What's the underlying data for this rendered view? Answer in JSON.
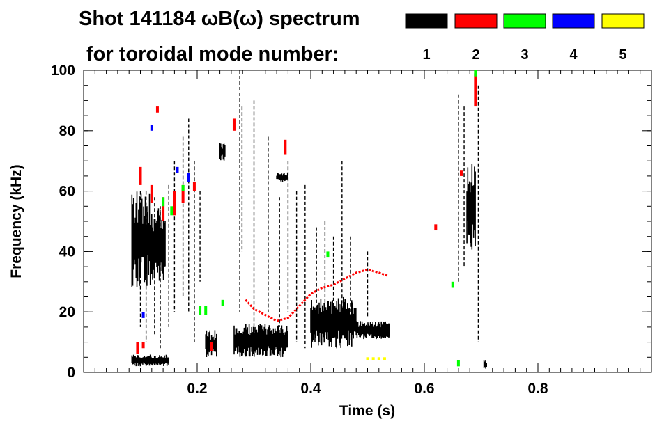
{
  "chart_data": {
    "type": "scatter",
    "title_line1": "Shot 141184 ωB(ω) spectrum",
    "title_line2": "for toroidal mode number:",
    "xlabel": "Time (s)",
    "ylabel": "Frequency (kHz)",
    "xlim": [
      0.0,
      1.0
    ],
    "ylim": [
      0,
      100
    ],
    "xticks": [
      0.2,
      0.4,
      0.6,
      0.8
    ],
    "xtick_labels": [
      "0.2",
      "0.4",
      "0.6",
      "0.8"
    ],
    "x_minor_step": 0.02,
    "yticks": [
      0,
      20,
      40,
      60,
      80,
      100
    ],
    "ytick_labels": [
      "0",
      "20",
      "40",
      "60",
      "80",
      "100"
    ],
    "y_minor_step": 5,
    "grid": false,
    "legend": {
      "placement": "top-right",
      "entries": [
        {
          "label": "1",
          "color": "#000000"
        },
        {
          "label": "2",
          "color": "#ff0000"
        },
        {
          "label": "3",
          "color": "#00ff00"
        },
        {
          "label": "4",
          "color": "#0000ff"
        },
        {
          "label": "5",
          "color": "#ffff00"
        }
      ]
    },
    "series": [
      {
        "name": "n=1",
        "color": "#000000",
        "regions": [
          {
            "t": [
              0.085,
              0.12
            ],
            "f": [
              28,
              60
            ]
          },
          {
            "t": [
              0.12,
              0.145
            ],
            "f": [
              30,
              55
            ]
          },
          {
            "t": [
              0.085,
              0.15
            ],
            "f": [
              2,
              6
            ]
          },
          {
            "t": [
              0.215,
              0.235
            ],
            "f": [
              5,
              14
            ]
          },
          {
            "t": [
              0.24,
              0.25
            ],
            "f": [
              70,
              76
            ]
          },
          {
            "t": [
              0.265,
              0.36
            ],
            "f": [
              5,
              16
            ]
          },
          {
            "t": [
              0.34,
              0.36
            ],
            "f": [
              63,
              66
            ]
          },
          {
            "t": [
              0.4,
              0.48
            ],
            "f": [
              8,
              25
            ]
          },
          {
            "t": [
              0.48,
              0.54
            ],
            "f": [
              11,
              17
            ]
          },
          {
            "t": [
              0.675,
              0.69
            ],
            "f": [
              40,
              70
            ]
          },
          {
            "t": [
              0.705,
              0.71
            ],
            "f": [
              1,
              4
            ]
          }
        ],
        "streaks": [
          {
            "t": 0.1,
            "f": [
              15,
              60
            ]
          },
          {
            "t": 0.11,
            "f": [
              10,
              60
            ]
          },
          {
            "t": 0.125,
            "f": [
              12,
              58
            ]
          },
          {
            "t": 0.135,
            "f": [
              8,
              55
            ]
          },
          {
            "t": 0.15,
            "f": [
              15,
              62
            ]
          },
          {
            "t": 0.16,
            "f": [
              20,
              70
            ]
          },
          {
            "t": 0.175,
            "f": [
              25,
              78
            ]
          },
          {
            "t": 0.185,
            "f": [
              20,
              84
            ]
          },
          {
            "t": 0.195,
            "f": [
              10,
              70
            ]
          },
          {
            "t": 0.205,
            "f": [
              30,
              60
            ]
          },
          {
            "t": 0.275,
            "f": [
              20,
              100
            ]
          },
          {
            "t": 0.279,
            "f": [
              40,
              88
            ]
          },
          {
            "t": 0.3,
            "f": [
              10,
              90
            ]
          },
          {
            "t": 0.325,
            "f": [
              20,
              78
            ]
          },
          {
            "t": 0.345,
            "f": [
              15,
              58
            ]
          },
          {
            "t": 0.36,
            "f": [
              20,
              70
            ]
          },
          {
            "t": 0.375,
            "f": [
              10,
              60
            ]
          },
          {
            "t": 0.39,
            "f": [
              8,
              62
            ]
          },
          {
            "t": 0.41,
            "f": [
              20,
              48
            ]
          },
          {
            "t": 0.425,
            "f": [
              15,
              50
            ]
          },
          {
            "t": 0.44,
            "f": [
              20,
              45
            ]
          },
          {
            "t": 0.455,
            "f": [
              20,
              70
            ]
          },
          {
            "t": 0.47,
            "f": [
              15,
              45
            ]
          },
          {
            "t": 0.5,
            "f": [
              18,
              40
            ]
          },
          {
            "t": 0.66,
            "f": [
              30,
              92
            ]
          },
          {
            "t": 0.67,
            "f": [
              35,
              88
            ]
          },
          {
            "t": 0.695,
            "f": [
              10,
              95
            ]
          }
        ]
      },
      {
        "name": "n=2",
        "color": "#ff0000",
        "points": [
          {
            "t": 0.095,
            "f": [
              6,
              10
            ]
          },
          {
            "t": 0.1,
            "f": [
              62,
              68
            ]
          },
          {
            "t": 0.105,
            "f": [
              8,
              10
            ]
          },
          {
            "t": 0.12,
            "f": [
              56,
              62
            ]
          },
          {
            "t": 0.14,
            "f": [
              50,
              58
            ]
          },
          {
            "t": 0.16,
            "f": [
              52,
              60
            ]
          },
          {
            "t": 0.175,
            "f": [
              56,
              62
            ]
          },
          {
            "t": 0.195,
            "f": [
              60,
              63
            ]
          },
          {
            "t": 0.225,
            "f": [
              7,
              10
            ]
          },
          {
            "t": 0.13,
            "f": [
              86,
              88
            ]
          },
          {
            "t": 0.265,
            "f": [
              80,
              84
            ]
          },
          {
            "t": 0.355,
            "f": [
              72,
              77
            ]
          },
          {
            "t": 0.62,
            "f": [
              47,
              49
            ]
          },
          {
            "t": 0.665,
            "f": [
              65,
              67
            ]
          },
          {
            "t": 0.69,
            "f": [
              88,
              99
            ]
          }
        ],
        "curve": [
          [
            0.285,
            24
          ],
          [
            0.3,
            21
          ],
          [
            0.32,
            19
          ],
          [
            0.34,
            17
          ],
          [
            0.36,
            18
          ],
          [
            0.38,
            22
          ],
          [
            0.4,
            26
          ],
          [
            0.42,
            28
          ],
          [
            0.44,
            29
          ],
          [
            0.46,
            31
          ],
          [
            0.48,
            33
          ],
          [
            0.5,
            34
          ],
          [
            0.52,
            33
          ],
          [
            0.535,
            32
          ]
        ]
      },
      {
        "name": "n=3",
        "color": "#00ff00",
        "points": [
          {
            "t": 0.14,
            "f": [
              55,
              58
            ]
          },
          {
            "t": 0.155,
            "f": [
              52,
              55
            ]
          },
          {
            "t": 0.175,
            "f": [
              60,
              62
            ]
          },
          {
            "t": 0.205,
            "f": [
              19,
              22
            ]
          },
          {
            "t": 0.215,
            "f": [
              19,
              22
            ]
          },
          {
            "t": 0.245,
            "f": [
              22,
              24
            ]
          },
          {
            "t": 0.65,
            "f": [
              28,
              30
            ]
          },
          {
            "t": 0.66,
            "f": [
              2,
              4
            ]
          },
          {
            "t": 0.69,
            "f": [
              98,
              100
            ]
          },
          {
            "t": 0.43,
            "f": [
              38,
              40
            ]
          }
        ]
      },
      {
        "name": "n=4",
        "color": "#0000ff",
        "points": [
          {
            "t": 0.12,
            "f": [
              80,
              82
            ]
          },
          {
            "t": 0.165,
            "f": [
              66,
              68
            ]
          },
          {
            "t": 0.185,
            "f": [
              63,
              66
            ]
          },
          {
            "t": 0.105,
            "f": [
              18,
              20
            ]
          }
        ]
      },
      {
        "name": "n=5",
        "color": "#ffff00",
        "points": [
          {
            "t": 0.5,
            "f": [
              4,
              5
            ]
          },
          {
            "t": 0.51,
            "f": [
              4,
              5
            ]
          },
          {
            "t": 0.52,
            "f": [
              4,
              5
            ]
          },
          {
            "t": 0.53,
            "f": [
              4,
              5
            ]
          }
        ]
      }
    ]
  }
}
